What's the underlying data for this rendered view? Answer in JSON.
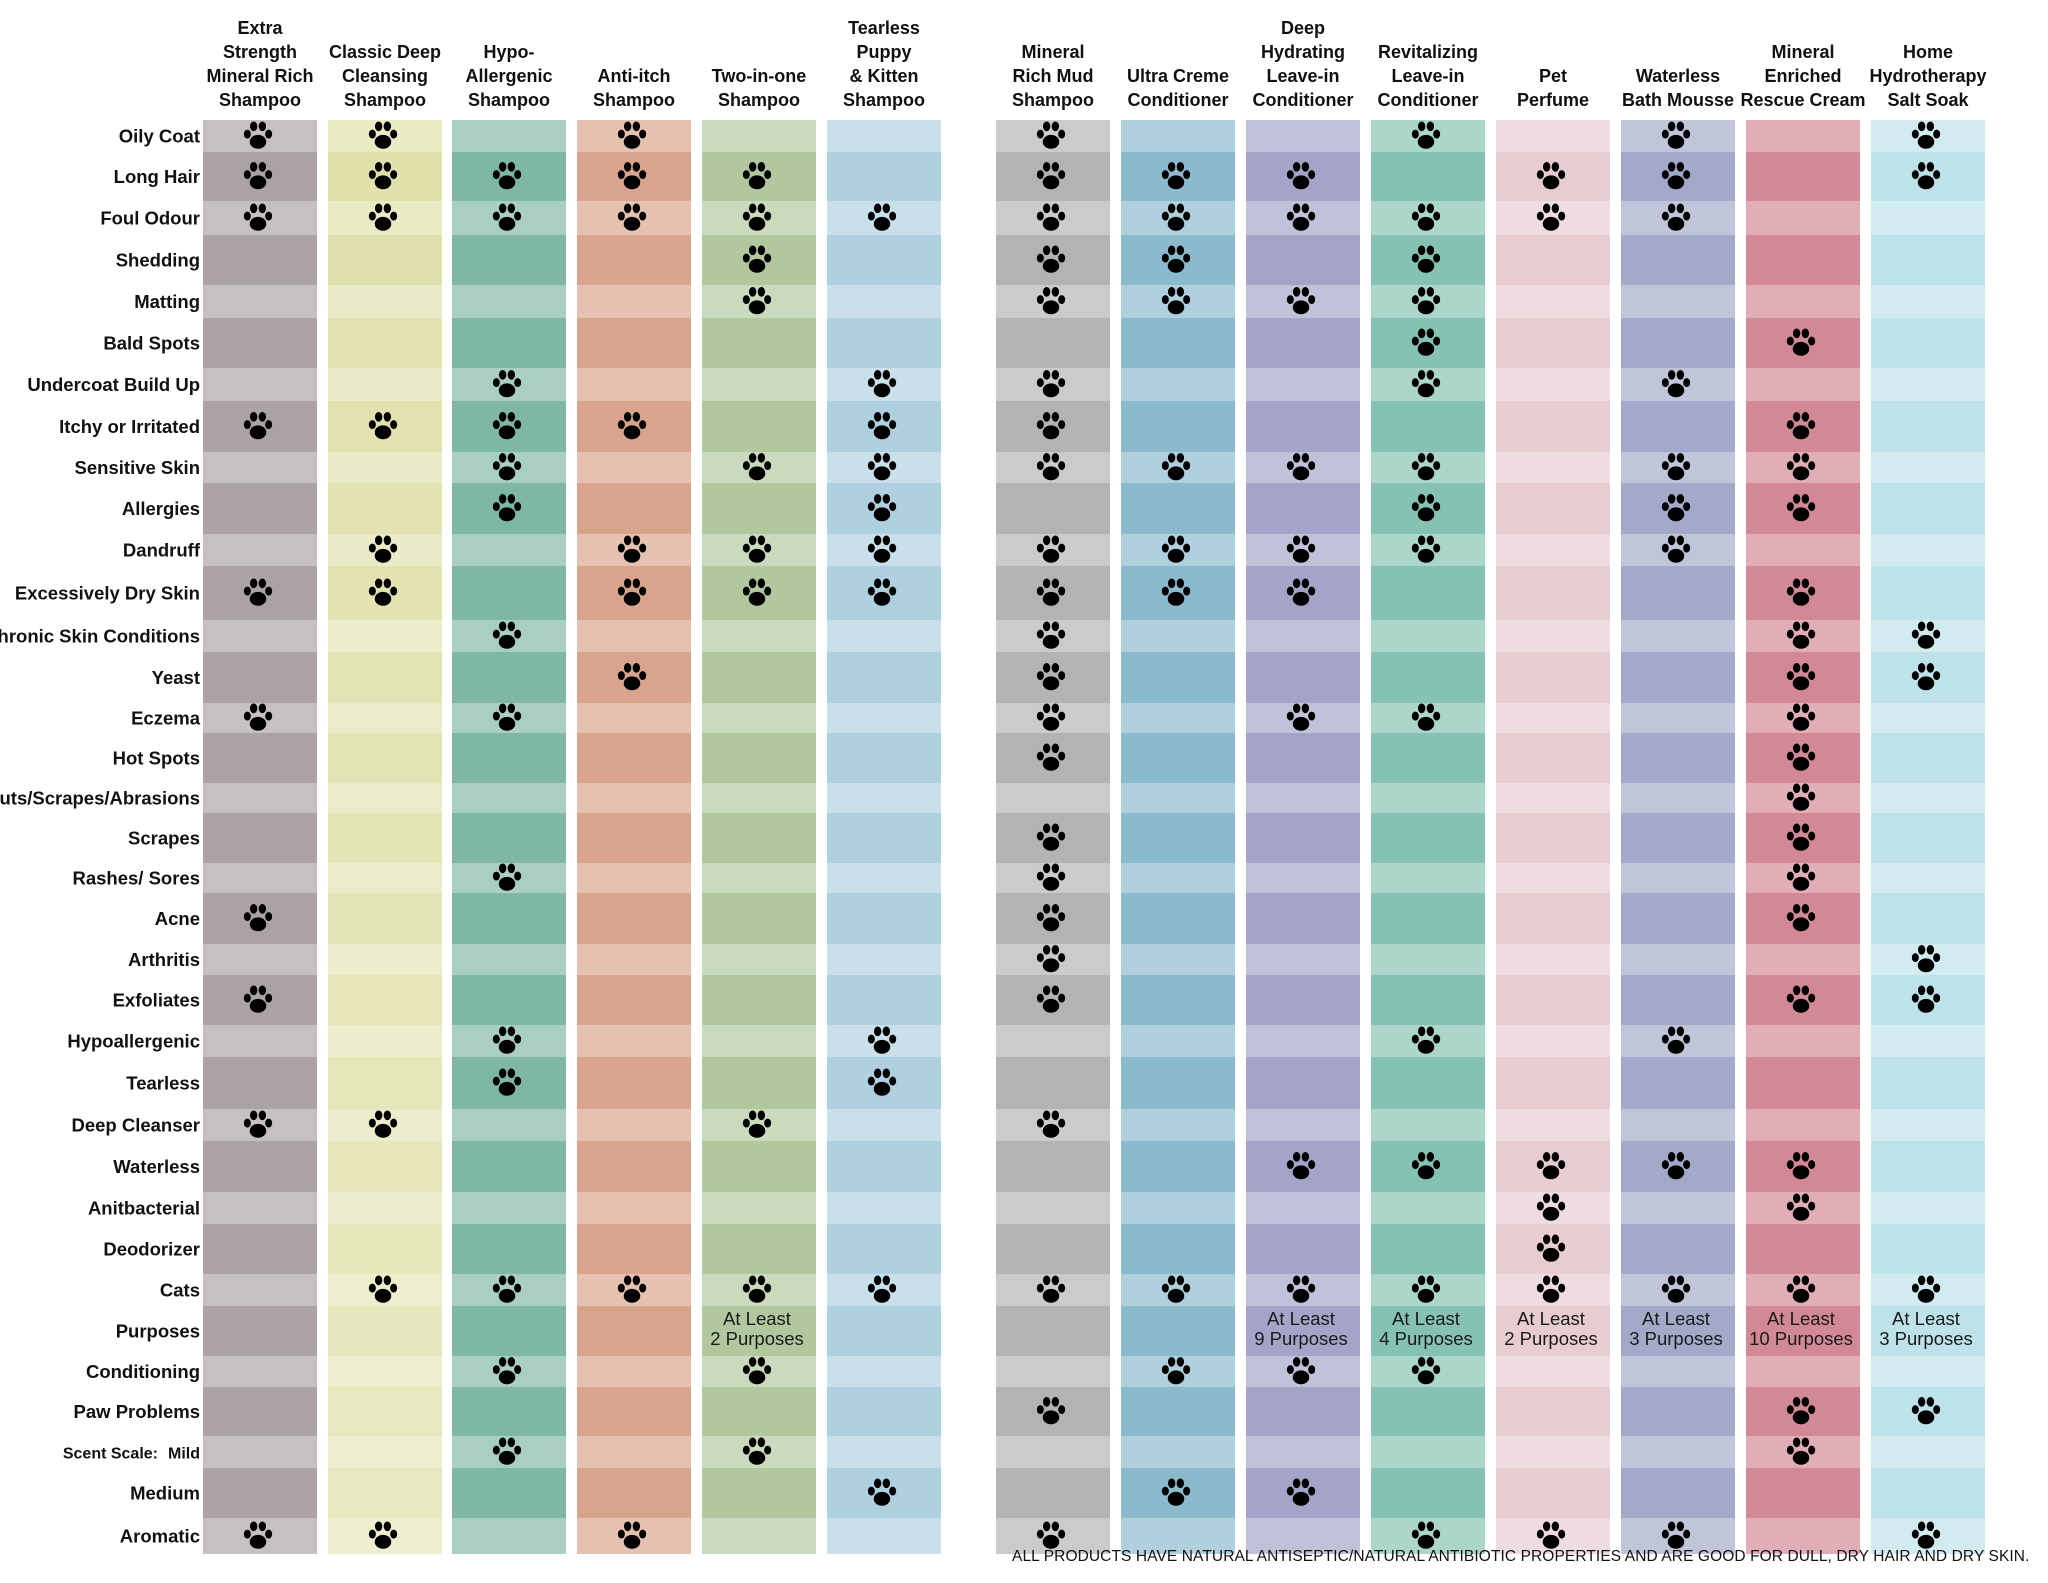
{
  "chart_data": {
    "type": "table",
    "columns": [
      {
        "key": "c1",
        "label": [
          "Extra",
          "Strength",
          "Mineral Rich",
          "Shampoo"
        ],
        "color": "#aba2a8"
      },
      {
        "key": "c2",
        "label": [
          "Classic Deep",
          "Cleansing",
          "Shampoo"
        ],
        "color": "#dcdda0"
      },
      {
        "key": "c3",
        "label": [
          "Hypo-",
          "Allergenic",
          "Shampoo"
        ],
        "color": "#7fb8a2"
      },
      {
        "key": "c4",
        "label": [
          "Anti-itch",
          "Shampoo"
        ],
        "color": "#d9a48c"
      },
      {
        "key": "c5",
        "label": [
          "Two-in-one",
          "Shampoo"
        ],
        "color": "#b1c89e"
      },
      {
        "key": "c6",
        "label": [
          "Tearless",
          "Puppy",
          "& Kitten",
          "Shampoo"
        ],
        "color": "#afd0de"
      },
      {
        "key": "c7",
        "label": [
          "Mineral",
          "Rich Mud",
          "Shampoo"
        ],
        "color": "#b3b3b3"
      },
      {
        "key": "c8",
        "label": [
          "Ultra Creme",
          "Conditioner"
        ],
        "color": "#8cbacd"
      },
      {
        "key": "c9",
        "label": [
          "Deep",
          "Hydrating",
          "Leave-in",
          "Conditioner"
        ],
        "color": "#a4a4c8"
      },
      {
        "key": "c10",
        "label": [
          "Revitalizing",
          "Leave-in",
          "Conditioner"
        ],
        "color": "#86c2b3"
      },
      {
        "key": "c11",
        "label": [
          "Pet",
          "Perfume"
        ],
        "color": "#e7ccd1"
      },
      {
        "key": "c12",
        "label": [
          "Waterless",
          "Bath Mousse"
        ],
        "color": "#a3a9c8"
      },
      {
        "key": "c13",
        "label": [
          "Mineral",
          "Enriched",
          "Rescue Cream"
        ],
        "color": "#d38896"
      },
      {
        "key": "c14",
        "label": [
          "Home",
          "Hydrotherapy",
          "Salt Soak"
        ],
        "color": "#bde2ea"
      }
    ],
    "rows": [
      {
        "label": "Oily Coat",
        "marks": [
          "c1",
          "c2",
          "c4",
          "c7",
          "c10",
          "c12",
          "c14"
        ]
      },
      {
        "label": "Long Hair",
        "marks": [
          "c1",
          "c2",
          "c3",
          "c4",
          "c5",
          "c7",
          "c8",
          "c9",
          "c11",
          "c12",
          "c14"
        ]
      },
      {
        "label": "Foul Odour",
        "marks": [
          "c1",
          "c2",
          "c3",
          "c4",
          "c5",
          "c6",
          "c7",
          "c8",
          "c9",
          "c10",
          "c11",
          "c12"
        ]
      },
      {
        "label": "Shedding",
        "marks": [
          "c5",
          "c7",
          "c8",
          "c10"
        ]
      },
      {
        "label": "Matting",
        "marks": [
          "c5",
          "c7",
          "c8",
          "c9",
          "c10"
        ]
      },
      {
        "label": "Bald Spots",
        "marks": [
          "c10",
          "c13"
        ]
      },
      {
        "label": "Undercoat Build Up",
        "marks": [
          "c3",
          "c6",
          "c7",
          "c10",
          "c12"
        ]
      },
      {
        "label": "Itchy or Irritated",
        "marks": [
          "c1",
          "c2",
          "c3",
          "c4",
          "c6",
          "c7",
          "c13"
        ]
      },
      {
        "label": "Sensitive Skin",
        "marks": [
          "c3",
          "c5",
          "c6",
          "c7",
          "c8",
          "c9",
          "c10",
          "c12",
          "c13"
        ]
      },
      {
        "label": "Allergies",
        "marks": [
          "c3",
          "c6",
          "c10",
          "c12",
          "c13"
        ]
      },
      {
        "label": "Dandruff",
        "marks": [
          "c2",
          "c4",
          "c5",
          "c6",
          "c7",
          "c8",
          "c9",
          "c10",
          "c12"
        ]
      },
      {
        "label": "Excessively Dry Skin",
        "marks": [
          "c1",
          "c2",
          "c4",
          "c5",
          "c6",
          "c7",
          "c8",
          "c9",
          "c13"
        ]
      },
      {
        "label": "Chronic Skin Conditions",
        "marks": [
          "c3",
          "c7",
          "c13",
          "c14"
        ]
      },
      {
        "label": "Yeast",
        "marks": [
          "c4",
          "c7",
          "c13",
          "c14"
        ]
      },
      {
        "label": "Eczema",
        "marks": [
          "c1",
          "c3",
          "c7",
          "c9",
          "c10",
          "c13"
        ]
      },
      {
        "label": "Hot Spots",
        "marks": [
          "c7",
          "c13"
        ]
      },
      {
        "label": "Cuts/Scrapes/Abrasions",
        "marks": [
          "c13"
        ]
      },
      {
        "label": "Scrapes",
        "marks": [
          "c7",
          "c13"
        ]
      },
      {
        "label": "Rashes/ Sores",
        "marks": [
          "c3",
          "c7",
          "c13"
        ]
      },
      {
        "label": "Acne",
        "marks": [
          "c1",
          "c7",
          "c13"
        ]
      },
      {
        "label": "Arthritis",
        "marks": [
          "c7",
          "c14"
        ]
      },
      {
        "label": "Exfoliates",
        "marks": [
          "c1",
          "c7",
          "c13",
          "c14"
        ]
      },
      {
        "label": "Hypoallergenic",
        "marks": [
          "c3",
          "c6",
          "c10",
          "c12"
        ]
      },
      {
        "label": "Tearless",
        "marks": [
          "c3",
          "c6"
        ]
      },
      {
        "label": "Deep Cleanser",
        "marks": [
          "c1",
          "c2",
          "c5",
          "c7"
        ]
      },
      {
        "label": "Waterless",
        "marks": [
          "c9",
          "c10",
          "c11",
          "c12",
          "c13"
        ]
      },
      {
        "label": "Anitbacterial",
        "marks": [
          "c11",
          "c13"
        ]
      },
      {
        "label": "Deodorizer",
        "marks": [
          "c11"
        ]
      },
      {
        "label": "Cats",
        "marks": [
          "c2",
          "c3",
          "c4",
          "c5",
          "c6",
          "c7",
          "c8",
          "c9",
          "c10",
          "c11",
          "c12",
          "c13",
          "c14"
        ]
      },
      {
        "label": "Purposes",
        "marks": [],
        "notes": {
          "c5": [
            "At Least",
            "2 Purposes"
          ],
          "c9": [
            "At Least",
            "9 Purposes"
          ],
          "c10": [
            "At Least",
            "4 Purposes"
          ],
          "c11": [
            "At Least",
            "2 Purposes"
          ],
          "c12": [
            "At Least",
            "3 Purposes"
          ],
          "c13": [
            "At Least",
            "10 Purposes"
          ],
          "c14": [
            "At Least",
            "3 Purposes"
          ]
        }
      },
      {
        "label": "Conditioning",
        "marks": [
          "c3",
          "c5",
          "c8",
          "c9",
          "c10"
        ]
      },
      {
        "label": "Paw Problems",
        "marks": [
          "c7",
          "c13",
          "c14"
        ]
      },
      {
        "label": "Mild",
        "prefix": "Scent Scale:",
        "marks": [
          "c3",
          "c5",
          "c13"
        ]
      },
      {
        "label": "Medium",
        "marks": [
          "c6",
          "c8",
          "c9"
        ]
      },
      {
        "label": "Aromatic",
        "marks": [
          "c1",
          "c2",
          "c4",
          "c7",
          "c10",
          "c11",
          "c12",
          "c14"
        ]
      }
    ]
  },
  "footer": "ALL PRODUCTS HAVE NATURAL ANTISEPTIC/NATURAL ANTIBIOTIC PROPERTIES AND ARE GOOD FOR DULL, DRY HAIR AND DRY SKIN."
}
